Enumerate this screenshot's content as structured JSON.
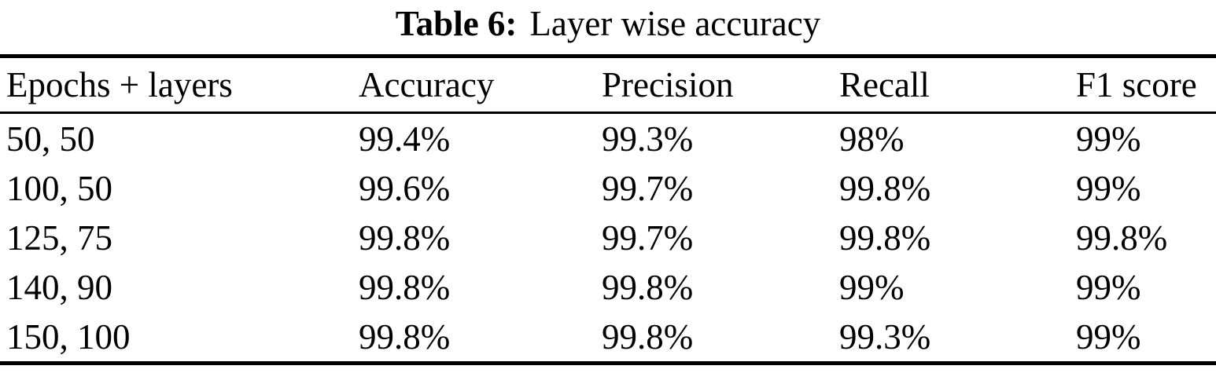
{
  "caption": {
    "label": "Table 6:",
    "text": "Layer wise accuracy"
  },
  "table": {
    "headers": [
      "Epochs + layers",
      "Accuracy",
      "Precision",
      "Recall",
      "F1 score"
    ],
    "rows": [
      [
        "50, 50",
        "99.4%",
        "99.3%",
        "98%",
        "99%"
      ],
      [
        "100, 50",
        "99.6%",
        "99.7%",
        "99.8%",
        "99%"
      ],
      [
        "125, 75",
        "99.8%",
        "99.7%",
        "99.8%",
        "99.8%"
      ],
      [
        "140, 90",
        "99.8%",
        "99.8%",
        "99%",
        "99%"
      ],
      [
        "150, 100",
        "99.8%",
        "99.8%",
        "99.3%",
        "99%"
      ]
    ]
  },
  "chart_data": {
    "type": "table",
    "title": "Table 6: Layer wise accuracy",
    "columns": [
      "Epochs + layers",
      "Accuracy",
      "Precision",
      "Recall",
      "F1 score"
    ],
    "rows": [
      {
        "epochs_layers": "50, 50",
        "accuracy_pct": 99.4,
        "precision_pct": 99.3,
        "recall_pct": 98,
        "f1_pct": 99
      },
      {
        "epochs_layers": "100, 50",
        "accuracy_pct": 99.6,
        "precision_pct": 99.7,
        "recall_pct": 99.8,
        "f1_pct": 99
      },
      {
        "epochs_layers": "125, 75",
        "accuracy_pct": 99.8,
        "precision_pct": 99.7,
        "recall_pct": 99.8,
        "f1_pct": 99.8
      },
      {
        "epochs_layers": "140, 90",
        "accuracy_pct": 99.8,
        "precision_pct": 99.8,
        "recall_pct": 99,
        "f1_pct": 99
      },
      {
        "epochs_layers": "150, 100",
        "accuracy_pct": 99.8,
        "precision_pct": 99.8,
        "recall_pct": 99.3,
        "f1_pct": 99
      }
    ]
  },
  "colors": {
    "text": "#000000",
    "background": "#ffffff",
    "rule": "#000000"
  }
}
